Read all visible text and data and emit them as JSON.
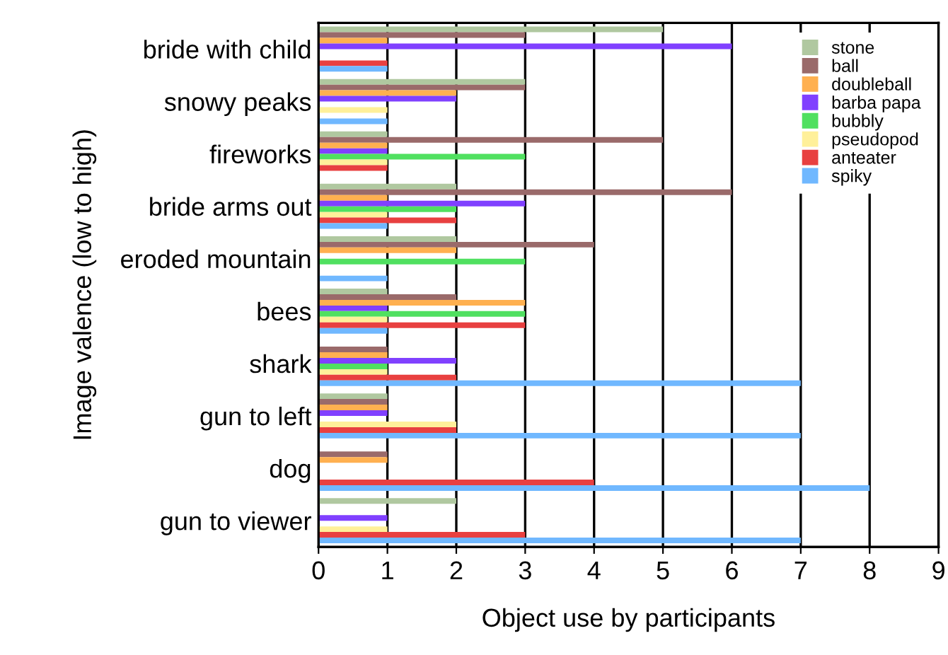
{
  "chart_data": {
    "type": "bar",
    "orientation": "horizontal",
    "xlabel": "Object use by participants",
    "ylabel": "Image valence (low to high)",
    "categories": [
      "bride with child",
      "snowy peaks",
      "fireworks",
      "bride arms out",
      "eroded mountain",
      "bees",
      "shark",
      "gun to left",
      "dog",
      "gun to viewer"
    ],
    "series": [
      {
        "name": "stone",
        "color": "#b0c8a0",
        "values": [
          5,
          3,
          1,
          2,
          2,
          1,
          0,
          1,
          0,
          2
        ]
      },
      {
        "name": "ball",
        "color": "#9a6a6a",
        "values": [
          3,
          3,
          5,
          6,
          4,
          2,
          1,
          1,
          1,
          0
        ]
      },
      {
        "name": "doubleball",
        "color": "#ffb050",
        "values": [
          1,
          2,
          1,
          1,
          2,
          3,
          1,
          1,
          1,
          0
        ]
      },
      {
        "name": "barba papa",
        "color": "#8040ff",
        "values": [
          6,
          2,
          1,
          3,
          0,
          1,
          2,
          1,
          0,
          1
        ]
      },
      {
        "name": "bubbly",
        "color": "#50e060",
        "values": [
          0,
          0,
          3,
          2,
          3,
          3,
          1,
          0,
          0,
          0
        ]
      },
      {
        "name": "pseudopod",
        "color": "#fff09a",
        "values": [
          0,
          1,
          1,
          1,
          0,
          1,
          1,
          2,
          0,
          1
        ]
      },
      {
        "name": "anteater",
        "color": "#e84040",
        "values": [
          1,
          0,
          1,
          2,
          0,
          3,
          2,
          2,
          4,
          3
        ]
      },
      {
        "name": "spiky",
        "color": "#70b8ff",
        "values": [
          1,
          1,
          0,
          1,
          1,
          1,
          7,
          7,
          8,
          7
        ]
      }
    ],
    "xlim": [
      0,
      9
    ],
    "xticks": [
      0,
      1,
      2,
      3,
      4,
      5,
      6,
      7,
      8,
      9
    ],
    "grid": "x",
    "legend": "top right"
  }
}
